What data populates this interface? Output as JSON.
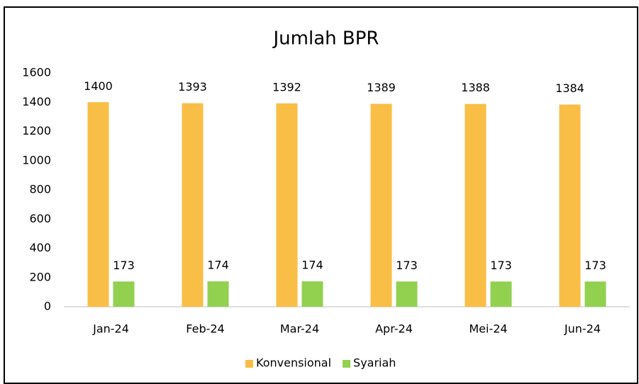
{
  "chart_data": {
    "type": "bar",
    "title": "Jumlah BPR",
    "categories": [
      "Jan-24",
      "Feb-24",
      "Mar-24",
      "Apr-24",
      "Mei-24",
      "Jun-24"
    ],
    "series": [
      {
        "name": "Konvensional",
        "color": "#F8BE45",
        "values": [
          1400,
          1393,
          1392,
          1389,
          1388,
          1384
        ]
      },
      {
        "name": "Syariah",
        "color": "#92D050",
        "values": [
          173,
          174,
          174,
          173,
          173,
          173
        ]
      }
    ],
    "ylim": [
      0,
      1600
    ],
    "yticks": [
      0,
      200,
      400,
      600,
      800,
      1000,
      1200,
      1400,
      1600
    ],
    "grid": false,
    "legend": "bottom"
  }
}
